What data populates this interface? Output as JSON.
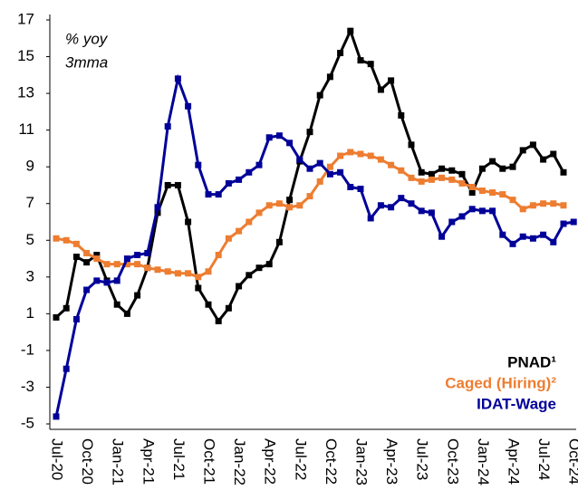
{
  "chart_data": {
    "type": "line",
    "annotations": [
      "% yoy",
      "3mma"
    ],
    "categories": [
      "Jul-20",
      null,
      null,
      "Oct-20",
      null,
      null,
      "Jan-21",
      null,
      null,
      "Apr-21",
      null,
      null,
      "Jul-21",
      null,
      null,
      "Oct-21",
      null,
      null,
      "Jan-22",
      null,
      null,
      "Apr-22",
      null,
      null,
      "Jul-22",
      null,
      null,
      "Oct-22",
      null,
      null,
      "Jan-23",
      null,
      null,
      "Apr-23",
      null,
      null,
      "Jul-23",
      null,
      null,
      "Oct-23",
      null,
      null,
      "Jan-24",
      null,
      null,
      "Apr-24",
      null,
      null,
      "Jul-24",
      null,
      null,
      "Oct-24"
    ],
    "series": [
      {
        "name": "PNAD¹",
        "color": "#000000",
        "values": [
          0.8,
          1.3,
          4.1,
          3.8,
          4.2,
          2.8,
          1.5,
          1.0,
          2.0,
          3.5,
          6.5,
          8.0,
          8.0,
          6.0,
          2.4,
          1.5,
          0.6,
          1.3,
          2.5,
          3.1,
          3.5,
          3.7,
          4.9,
          7.2,
          9.3,
          10.9,
          12.9,
          13.9,
          15.2,
          16.4,
          14.8,
          14.6,
          13.2,
          13.7,
          11.8,
          10.2,
          8.7,
          8.6,
          8.9,
          8.8,
          8.6,
          7.6,
          8.9,
          9.3,
          8.9,
          9.0,
          9.9,
          10.2,
          9.4,
          9.7,
          8.7,
          null
        ]
      },
      {
        "name": "Caged (Hiring)²",
        "color": "#ed7d31",
        "values": [
          5.1,
          5.0,
          4.8,
          4.3,
          4.0,
          3.7,
          3.7,
          3.7,
          3.7,
          3.5,
          3.4,
          3.3,
          3.2,
          3.2,
          3.0,
          3.3,
          4.2,
          5.1,
          5.5,
          6.0,
          6.5,
          6.9,
          7.0,
          6.8,
          6.9,
          7.4,
          8.2,
          9.0,
          9.6,
          9.8,
          9.7,
          9.6,
          9.4,
          9.1,
          8.8,
          8.4,
          8.2,
          8.3,
          8.4,
          8.3,
          8.1,
          7.9,
          7.7,
          7.6,
          7.5,
          7.2,
          6.7,
          6.9,
          7.0,
          7.0,
          6.9,
          null
        ]
      },
      {
        "name": "IDAT-Wage",
        "color": "#000099",
        "values": [
          -4.6,
          -2.0,
          0.7,
          2.3,
          2.8,
          2.7,
          2.8,
          4.0,
          4.2,
          4.3,
          6.8,
          11.2,
          13.8,
          12.3,
          9.1,
          7.5,
          7.5,
          8.1,
          8.3,
          8.7,
          9.1,
          10.6,
          10.7,
          10.3,
          9.4,
          8.9,
          9.2,
          8.6,
          8.7,
          7.9,
          7.8,
          6.2,
          6.9,
          6.8,
          7.3,
          7.0,
          6.6,
          6.5,
          5.2,
          6.0,
          6.3,
          6.7,
          6.6,
          6.6,
          5.3,
          4.8,
          5.2,
          5.1,
          5.3,
          4.9,
          5.9,
          6.0
        ]
      }
    ],
    "ylim": [
      -5,
      17
    ],
    "yticks": [
      -5,
      -3,
      -1,
      1,
      3,
      5,
      7,
      9,
      11,
      13,
      15,
      17
    ],
    "grid": false,
    "legend_position": "lower right"
  }
}
